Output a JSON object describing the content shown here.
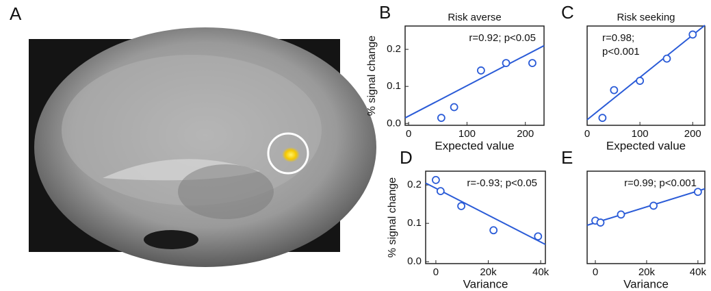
{
  "image_panel": {
    "label": "A"
  },
  "chart_data": [
    {
      "type": "scatter",
      "panel_label": "B",
      "title": "Risk averse",
      "xlabel": "Expected value",
      "ylabel": "% signal change",
      "annotation": [
        "r=0.92; p<0.05"
      ],
      "color": "#2a5bd7",
      "x": [
        56,
        78,
        124,
        167,
        212
      ],
      "values": [
        0.015,
        0.044,
        0.143,
        0.163,
        0.163
      ],
      "fit": {
        "x": [
          -6,
          232
        ],
        "values": [
          0.015,
          0.21
        ]
      },
      "xlim": [
        -6,
        232
      ],
      "ylim": [
        -0.005,
        0.263
      ],
      "xticks": [
        0,
        100,
        200
      ],
      "yticks": [
        {
          "value": 0,
          "label": "0.0"
        },
        0.1,
        0.2
      ]
    },
    {
      "type": "scatter",
      "panel_label": "C",
      "title": "Risk seeking",
      "xlabel": "Expected value",
      "annotation": [
        "r=0.98;",
        "p<0.001"
      ],
      "color": "#2a5bd7",
      "x": [
        29,
        51,
        100,
        151,
        200
      ],
      "values": [
        0.015,
        0.09,
        0.115,
        0.175,
        0.24
      ],
      "fit": {
        "x": [
          0,
          223
        ],
        "values": [
          0.01,
          0.265
        ]
      },
      "xlim": [
        0,
        223
      ],
      "ylim": [
        -0.005,
        0.263
      ],
      "xticks": [
        0,
        100,
        200
      ]
    },
    {
      "type": "scatter",
      "panel_label": "D",
      "xlabel": "Variance",
      "ylabel": "% signal change",
      "annotation": [
        "r=-0.93; p<0.05"
      ],
      "color": "#2a5bd7",
      "x": [
        0,
        1800,
        9700,
        22000,
        39000
      ],
      "values": [
        0.213,
        0.184,
        0.145,
        0.082,
        0.066
      ],
      "fit": {
        "x": [
          -3900,
          41800
        ],
        "values": [
          0.205,
          0.045
        ]
      },
      "xlim": [
        -3900,
        41800
      ],
      "ylim": [
        -0.005,
        0.236
      ],
      "xticks": [
        0,
        {
          "value": 20000,
          "label": "20k"
        },
        {
          "value": 40000,
          "label": "40k"
        }
      ],
      "yticks": [
        {
          "value": 0,
          "label": "0.0"
        },
        0.1,
        0.2
      ]
    },
    {
      "type": "scatter",
      "panel_label": "E",
      "xlabel": "Variance",
      "annotation": [
        "r=0.99; p<0.001"
      ],
      "color": "#2a5bd7",
      "x": [
        0,
        2000,
        10000,
        22700,
        40000
      ],
      "values": [
        0.107,
        0.102,
        0.123,
        0.146,
        0.182
      ],
      "fit": {
        "x": [
          -3200,
          42700
        ],
        "values": [
          0.095,
          0.19
        ]
      },
      "xlim": [
        -3200,
        42700
      ],
      "ylim": [
        -0.005,
        0.236
      ],
      "xticks": [
        0,
        {
          "value": 20000,
          "label": "20k"
        },
        {
          "value": 40000,
          "label": "40k"
        }
      ]
    }
  ]
}
